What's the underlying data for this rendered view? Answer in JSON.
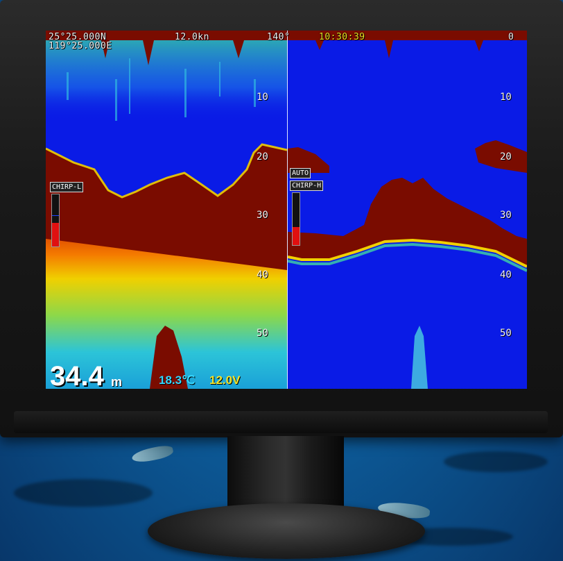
{
  "header": {
    "latitude": "25°25.000N",
    "longitude": "119°25.000E",
    "speed": "12.0kn",
    "heading": "140°",
    "time": "10:30:39",
    "top_depth_right": "0"
  },
  "left_panel": {
    "mode": "CHIRP-L",
    "gain_level": 0.45,
    "depth_scale": [
      "10",
      "20",
      "30",
      "40",
      "50"
    ]
  },
  "right_panel": {
    "gain_mode": "AUTO",
    "mode": "CHIRP-H",
    "gain_level": 0.35,
    "depth_scale": [
      "10",
      "20",
      "30",
      "40",
      "50"
    ]
  },
  "footer": {
    "depth_value": "34.4",
    "depth_unit": "m",
    "water_temperature": "18.3℃",
    "voltage": "12.0V"
  },
  "colors": {
    "water": "#0a1be6",
    "bottom": "#7a0c00",
    "accent_temperature": "#35d7ff",
    "accent_voltage": "#f4e42a"
  }
}
